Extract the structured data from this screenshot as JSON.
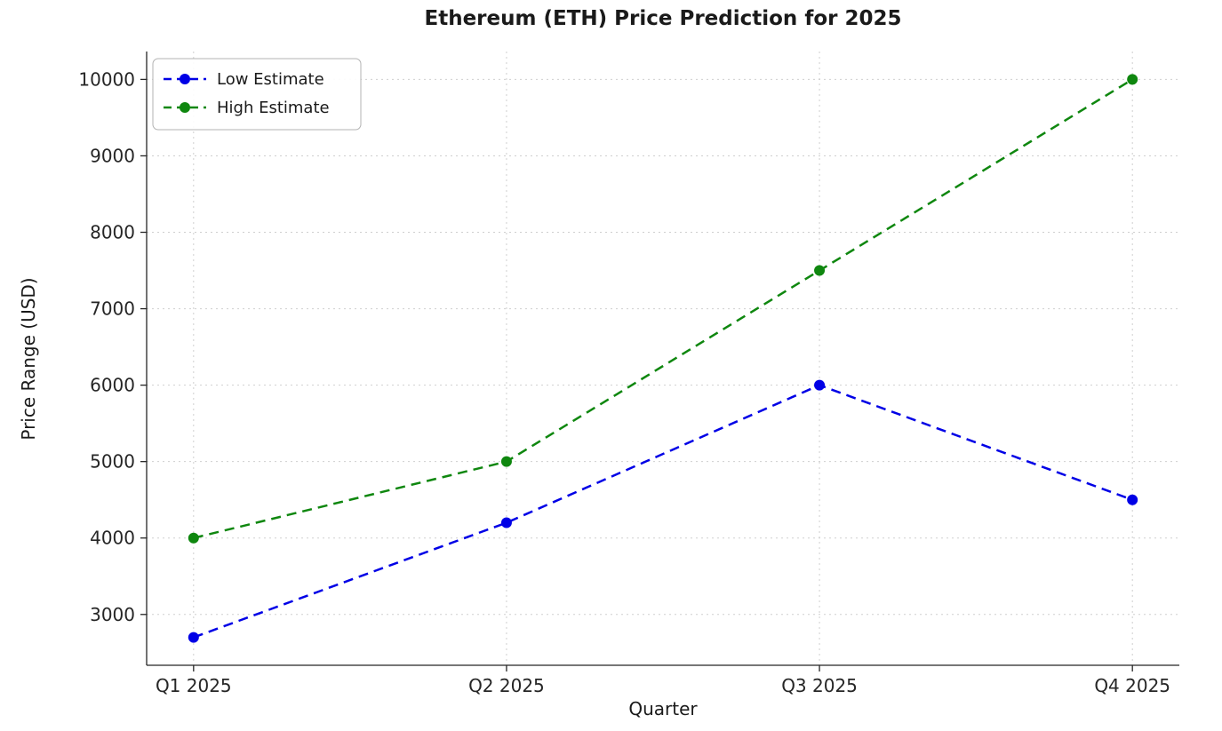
{
  "chart_data": {
    "type": "line",
    "title": "Ethereum (ETH) Price Prediction for 2025",
    "xlabel": "Quarter",
    "ylabel": "Price Range (USD)",
    "categories": [
      "Q1 2025",
      "Q2 2025",
      "Q3 2025",
      "Q4 2025"
    ],
    "series": [
      {
        "name": "Low Estimate",
        "color": "#0000e6",
        "line_style": "dashed",
        "marker": "circle",
        "values": [
          2700,
          4200,
          6000,
          4500
        ]
      },
      {
        "name": "High Estimate",
        "color": "#0f870f",
        "line_style": "dashed",
        "marker": "circle",
        "values": [
          4000,
          5000,
          7500,
          10000
        ]
      }
    ],
    "yticks": [
      3000,
      4000,
      5000,
      6000,
      7000,
      8000,
      9000,
      10000
    ],
    "ylim": [
      2335,
      10365
    ],
    "xlim": [
      -0.15,
      3.15
    ],
    "grid": true,
    "grid_style": "dotted",
    "legend_position": "upper left",
    "background": "#ffffff"
  }
}
